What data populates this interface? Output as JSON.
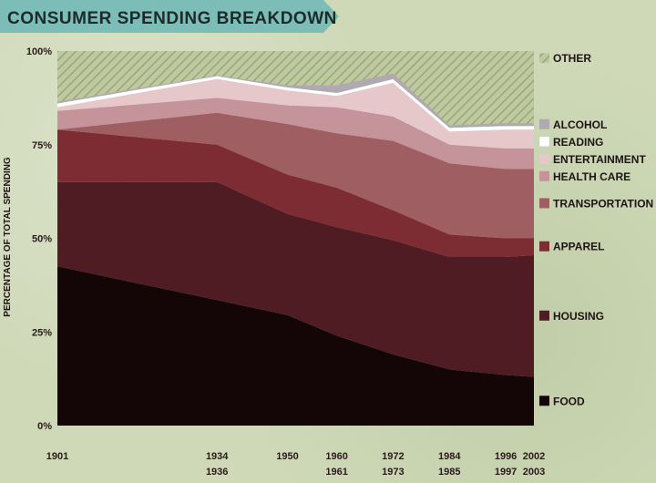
{
  "chart_data": {
    "type": "area",
    "stacked": true,
    "title": "CONSUMER SPENDING BREAKDOWN",
    "ylabel": "PERCENTAGE OF TOTAL SPENDING",
    "xlabel": "",
    "ylim": [
      0,
      100
    ],
    "y_ticks": [
      "0%",
      "25%",
      "50%",
      "75%",
      "100%"
    ],
    "x": [
      {
        "line1": "1901",
        "line2": ""
      },
      {
        "line1": "1934",
        "line2": "1936"
      },
      {
        "line1": "1950",
        "line2": ""
      },
      {
        "line1": "1960",
        "line2": "1961"
      },
      {
        "line1": "1972",
        "line2": "1973"
      },
      {
        "line1": "1984",
        "line2": "1985"
      },
      {
        "line1": "1996",
        "line2": "1997"
      },
      {
        "line1": "2002",
        "line2": "2003"
      }
    ],
    "x_position_years": [
      1901,
      1935,
      1950,
      1960.5,
      1972.5,
      1984.5,
      1996.5,
      2002.5
    ],
    "series": [
      {
        "name": "FOOD",
        "color": "#140506",
        "values": [
          42.5,
          33.5,
          29.5,
          24.0,
          19.0,
          15.0,
          13.5,
          13.0
        ]
      },
      {
        "name": "HOUSING",
        "color": "#4e1c22",
        "values": [
          22.5,
          31.5,
          27.0,
          29.0,
          30.5,
          30.0,
          31.5,
          32.5
        ]
      },
      {
        "name": "APPAREL",
        "color": "#7e2c34",
        "values": [
          14.0,
          10.0,
          10.5,
          10.5,
          8.0,
          6.0,
          5.0,
          4.5
        ]
      },
      {
        "name": "TRANSPORTATION",
        "color": "#9e5e62",
        "values": [
          0.0,
          8.5,
          13.5,
          14.5,
          18.5,
          19.0,
          18.5,
          18.5
        ]
      },
      {
        "name": "HEALTH CARE",
        "color": "#c5949a",
        "values": [
          5.0,
          4.0,
          5.0,
          7.0,
          6.5,
          5.0,
          5.5,
          5.5
        ]
      },
      {
        "name": "ENTERTAINMENT",
        "color": "#e6c8cb",
        "values": [
          1.0,
          5.0,
          4.0,
          3.0,
          9.0,
          3.5,
          5.0,
          5.0
        ]
      },
      {
        "name": "READING",
        "color": "#ffffff",
        "values": [
          1.0,
          0.8,
          0.8,
          0.8,
          1.0,
          1.0,
          1.0,
          1.0
        ]
      },
      {
        "name": "ALCOHOL",
        "color": "#b1a9b1",
        "values": [
          0.5,
          0.2,
          0.5,
          2.0,
          1.5,
          0.7,
          0.7,
          0.7
        ]
      },
      {
        "name": "OTHER",
        "color": "#aeb98f",
        "values": [
          13.5,
          7.0,
          9.2,
          9.2,
          6.0,
          19.8,
          19.3,
          19.3
        ]
      }
    ]
  }
}
